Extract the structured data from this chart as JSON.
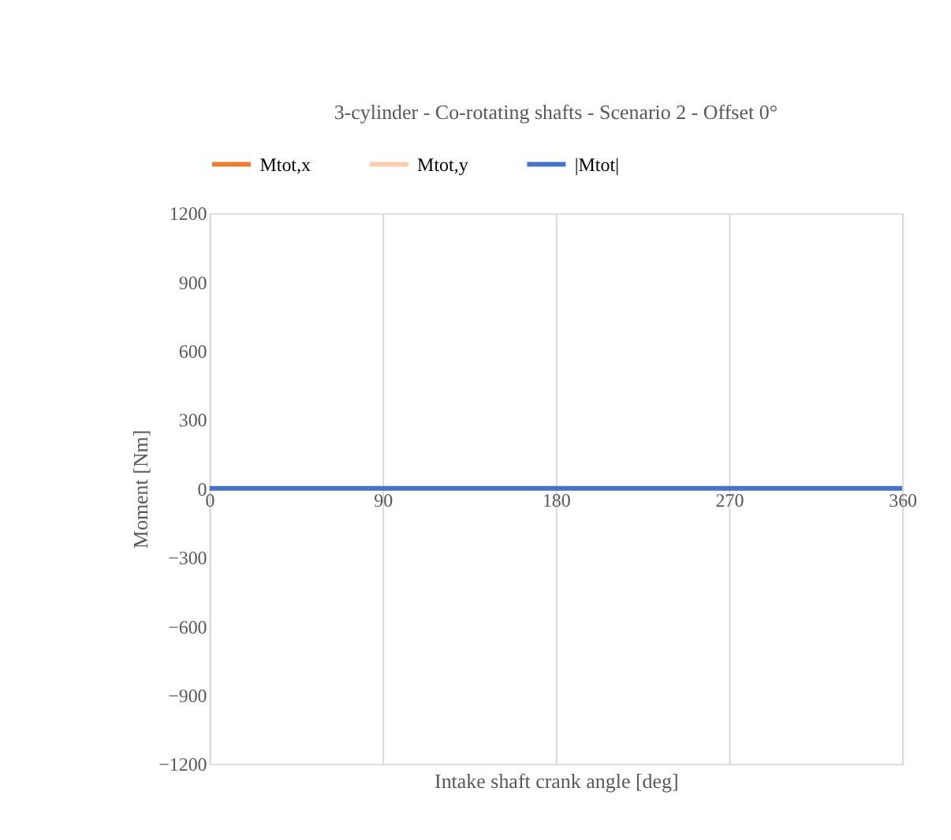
{
  "chart_data": {
    "type": "line",
    "title": "3-cylinder - Co-rotating shafts - Scenario 2 - Offset 0°",
    "xlabel": "Intake shaft crank angle [deg]",
    "ylabel": "Moment [Nm]",
    "x": [
      0,
      360
    ],
    "series": [
      {
        "name": "Mtot,x",
        "color": "#ed7d31",
        "values": [
          null,
          null
        ]
      },
      {
        "name": "Mtot,y",
        "color": "#f8cbad",
        "values": [
          null,
          null
        ]
      },
      {
        "name": "|Mtot|",
        "color": "#4472c4",
        "values": [
          0,
          0
        ]
      }
    ],
    "xlim": [
      0,
      360
    ],
    "xticks": [
      0,
      90,
      180,
      270,
      360
    ],
    "ylim": [
      -1200,
      1200
    ],
    "yticks": [
      {
        "value": -1200,
        "label": "−1200"
      },
      {
        "value": -900,
        "label": "−900"
      },
      {
        "value": -600,
        "label": "−600"
      },
      {
        "value": -300,
        "label": "−300"
      },
      0,
      300,
      600,
      900,
      1200
    ],
    "grid": "x",
    "legend": "top",
    "marker": "none",
    "line_style": "solid"
  }
}
